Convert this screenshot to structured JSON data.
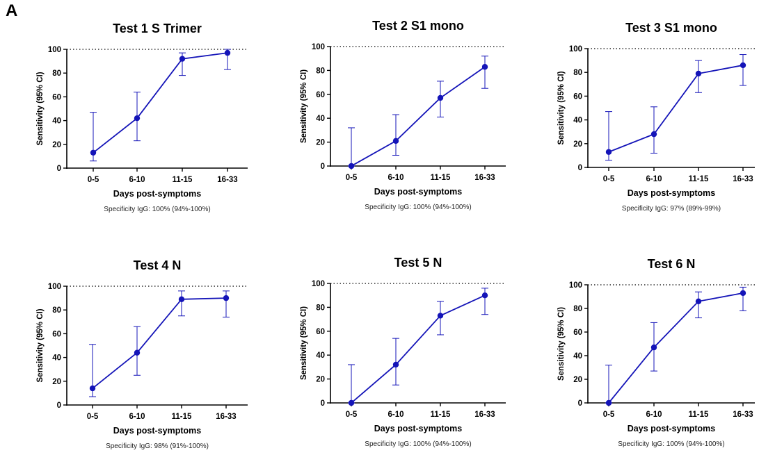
{
  "figure": {
    "panel_label": "A",
    "colors": {
      "series": "#1414b8",
      "axis": "#000000",
      "reference": "#000000"
    }
  },
  "chart_data": [
    {
      "type": "line",
      "title": "Test 1 S Trimer",
      "xlabel": "Days post-symptoms",
      "ylabel": "Sensitivity (95% CI)",
      "categories": [
        "0-5",
        "6-10",
        "11-15",
        "16-33"
      ],
      "ylim": [
        0,
        100
      ],
      "yticks": [
        0,
        20,
        40,
        60,
        80,
        100
      ],
      "reference_line": 100,
      "series": [
        {
          "values": [
            13,
            42,
            92,
            97
          ],
          "ci_low": [
            6,
            23,
            78,
            83
          ],
          "ci_high": [
            47,
            64,
            97,
            100
          ]
        }
      ],
      "footnote": "Specificity IgG: 100% (94%-100%)"
    },
    {
      "type": "line",
      "title": "Test 2 S1 mono",
      "xlabel": "Days post-symptoms",
      "ylabel": "Sensitivity (95% CI)",
      "categories": [
        "0-5",
        "6-10",
        "11-15",
        "16-33"
      ],
      "ylim": [
        0,
        100
      ],
      "yticks": [
        0,
        20,
        40,
        60,
        80,
        100
      ],
      "reference_line": 100,
      "series": [
        {
          "values": [
            0,
            21,
            57,
            83
          ],
          "ci_low": [
            0,
            9,
            41,
            65
          ],
          "ci_high": [
            32,
            43,
            71,
            92
          ]
        }
      ],
      "footnote": "Specificity IgG: 100% (94%-100%)"
    },
    {
      "type": "line",
      "title": "Test 3 S1 mono",
      "xlabel": "Days post-symptoms",
      "ylabel": "Sensitivity (95% CI)",
      "categories": [
        "0-5",
        "6-10",
        "11-15",
        "16-33"
      ],
      "ylim": [
        0,
        100
      ],
      "yticks": [
        0,
        20,
        40,
        60,
        80,
        100
      ],
      "reference_line": 100,
      "series": [
        {
          "values": [
            13,
            28,
            79,
            86
          ],
          "ci_low": [
            6,
            12,
            63,
            69
          ],
          "ci_high": [
            47,
            51,
            90,
            95
          ]
        }
      ],
      "footnote": "Specificity IgG: 97% (89%-99%)"
    },
    {
      "type": "line",
      "title": "Test 4 N",
      "xlabel": "Days post-symptoms",
      "ylabel": "Sensitivity (95% CI)",
      "categories": [
        "0-5",
        "6-10",
        "11-15",
        "16-33"
      ],
      "ylim": [
        0,
        100
      ],
      "yticks": [
        0,
        20,
        40,
        60,
        80,
        100
      ],
      "reference_line": 100,
      "series": [
        {
          "values": [
            14,
            44,
            89,
            90
          ],
          "ci_low": [
            7,
            25,
            75,
            74
          ],
          "ci_high": [
            51,
            66,
            96,
            96
          ]
        }
      ],
      "footnote": "Specificity IgG: 98% (91%-100%)"
    },
    {
      "type": "line",
      "title": "Test 5 N",
      "xlabel": "Days post-symptoms",
      "ylabel": "Sensitivity (95% CI)",
      "categories": [
        "0-5",
        "6-10",
        "11-15",
        "16-33"
      ],
      "ylim": [
        0,
        100
      ],
      "yticks": [
        0,
        20,
        40,
        60,
        80,
        100
      ],
      "reference_line": 100,
      "series": [
        {
          "values": [
            0,
            32,
            73,
            90
          ],
          "ci_low": [
            0,
            15,
            57,
            74
          ],
          "ci_high": [
            32,
            54,
            85,
            96
          ]
        }
      ],
      "footnote": "Specificity IgG: 100% (94%-100%)"
    },
    {
      "type": "line",
      "title": "Test 6 N",
      "xlabel": "Days post-symptoms",
      "ylabel": "Sensitivity (95% CI)",
      "categories": [
        "0-5",
        "6-10",
        "11-15",
        "16-33"
      ],
      "ylim": [
        0,
        100
      ],
      "yticks": [
        0,
        20,
        40,
        60,
        80,
        100
      ],
      "reference_line": 100,
      "series": [
        {
          "values": [
            0,
            47,
            86,
            93
          ],
          "ci_low": [
            0,
            27,
            72,
            78
          ],
          "ci_high": [
            32,
            68,
            94,
            98
          ]
        }
      ],
      "footnote": "Specificity IgG: 100% (94%-100%)"
    }
  ]
}
